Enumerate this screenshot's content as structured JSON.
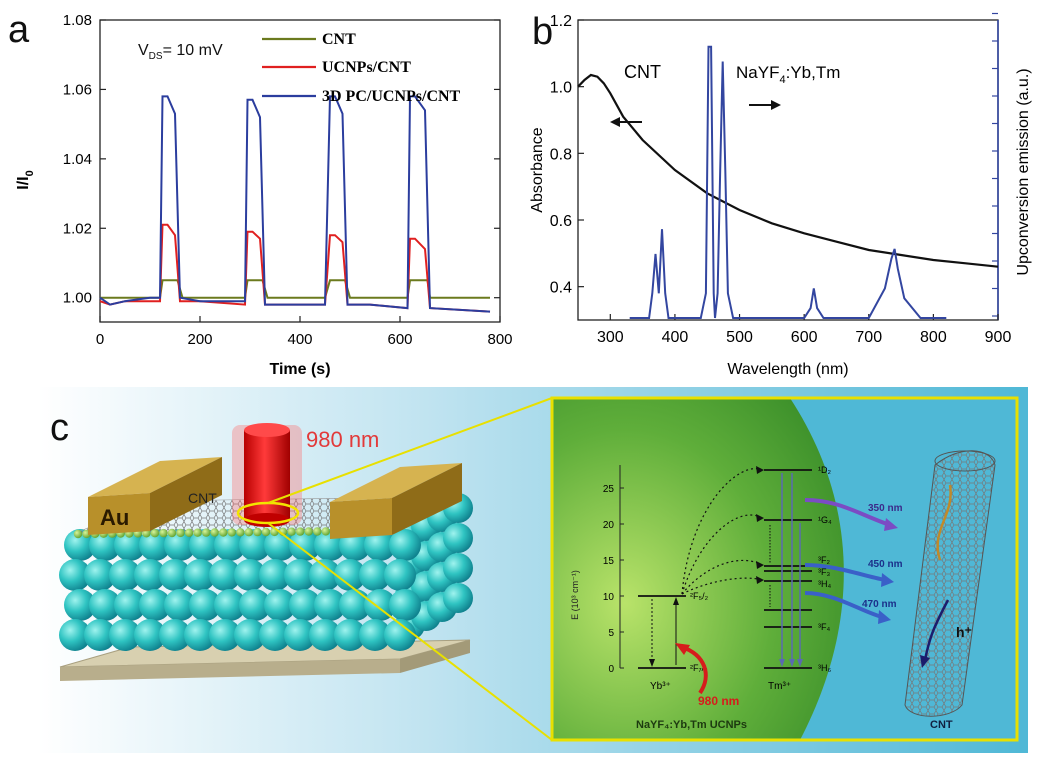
{
  "panels": {
    "a": {
      "label": "a",
      "vds_text": "V",
      "vds_sub": "DS",
      "vds_value": "= 10 mV",
      "ylabel_main": "I/I",
      "ylabel_sub": "0",
      "xlabel": "Time (s)",
      "legend": [
        "CNT",
        "UCNPs/CNT",
        "3D PC/UCNPs/CNT"
      ],
      "xticks": [
        "0",
        "200",
        "400",
        "600",
        "800"
      ],
      "yticks": [
        "1.00",
        "1.02",
        "1.04",
        "1.06",
        "1.08"
      ]
    },
    "b": {
      "label": "b",
      "cnt_label": "CNT",
      "nayf_label_main": "NaYF",
      "nayf_label_sub": "4",
      "nayf_label_tail": ":Yb,Tm",
      "ylabel_left": "Absorbance",
      "ylabel_right": "Upconversion emission (a.u.)",
      "xlabel": "Wavelength (nm)",
      "xticks": [
        "300",
        "400",
        "500",
        "600",
        "700",
        "800",
        "900"
      ],
      "yticks": [
        "0.4",
        "0.6",
        "0.8",
        "1.0",
        "1.2"
      ]
    },
    "c": {
      "label": "c",
      "laser_label": "980 nm",
      "au_label": "Au",
      "cnt_device_label": "CNT",
      "inset": {
        "y_axis_label": "E (10³ cm⁻¹)",
        "yticks": [
          "0",
          "5",
          "10",
          "15",
          "20",
          "25"
        ],
        "yb_ion": "Yb³⁺",
        "tm_ion": "Tm³⁺",
        "excitation": "980 nm",
        "emission": [
          "350 nm",
          "450 nm",
          "470 nm"
        ],
        "yb_levels": [
          "²F₅/₂",
          "²F₇/₂"
        ],
        "tm_levels": [
          "¹D₂",
          "¹G₄",
          "³F₂",
          "³F₃",
          "³H₄",
          "³F₄",
          "³H₆"
        ],
        "hole_label": "h⁺",
        "ucnp_caption": "NaYF₄:Yb,Tm UCNPs",
        "cnt_caption": "CNT"
      }
    }
  },
  "chart_data": [
    {
      "type": "line",
      "panel": "a",
      "xlabel": "Time (s)",
      "ylabel": "I/I0",
      "xlim": [
        0,
        800
      ],
      "ylim": [
        0.993,
        1.08
      ],
      "series": [
        {
          "name": "CNT",
          "color": "#6b7a1e",
          "x": [
            0,
            100,
            120,
            125,
            155,
            165,
            280,
            290,
            295,
            325,
            335,
            440,
            450,
            460,
            490,
            500,
            600,
            615,
            620,
            655,
            660,
            780
          ],
          "y": [
            1.0,
            1.0,
            1.0,
            1.005,
            1.005,
            1.0,
            1.0,
            1.0,
            1.005,
            1.005,
            1.0,
            1.0,
            1.0,
            1.005,
            1.005,
            1.0,
            1.0,
            1.0,
            1.005,
            1.005,
            1.0,
            1.0
          ]
        },
        {
          "name": "UCNPs/CNT",
          "color": "#e02020",
          "x": [
            0,
            20,
            50,
            100,
            120,
            125,
            135,
            150,
            160,
            200,
            290,
            295,
            305,
            320,
            330,
            370,
            450,
            460,
            470,
            485,
            495,
            540,
            615,
            620,
            630,
            650,
            660,
            780
          ],
          "y": [
            0.999,
            0.998,
            0.999,
            0.999,
            0.999,
            1.021,
            1.021,
            1.018,
            0.999,
            0.999,
            0.998,
            1.019,
            1.019,
            1.017,
            0.998,
            0.998,
            0.998,
            1.018,
            1.018,
            1.016,
            0.998,
            0.998,
            0.997,
            1.017,
            1.017,
            1.014,
            0.997,
            0.996
          ]
        },
        {
          "name": "3D PC/UCNPs/CNT",
          "color": "#2b3d9e",
          "x": [
            0,
            20,
            50,
            100,
            120,
            125,
            135,
            150,
            160,
            200,
            290,
            295,
            305,
            320,
            330,
            370,
            450,
            460,
            470,
            485,
            495,
            540,
            615,
            620,
            630,
            650,
            660,
            780
          ],
          "y": [
            1.0,
            0.998,
            0.999,
            1.0,
            1.0,
            1.058,
            1.058,
            1.053,
            1.0,
            0.999,
            0.999,
            1.057,
            1.057,
            1.052,
            0.998,
            0.998,
            0.998,
            1.058,
            1.058,
            1.053,
            0.998,
            0.998,
            0.997,
            1.058,
            1.058,
            1.054,
            0.997,
            0.996
          ]
        }
      ]
    },
    {
      "type": "line",
      "panel": "b",
      "xlabel": "Wavelength (nm)",
      "ylabel": "Absorbance",
      "ylabel_right": "Upconversion emission (a.u.)",
      "xlim": [
        250,
        900
      ],
      "ylim": [
        0.3,
        1.2
      ],
      "series": [
        {
          "name": "CNT",
          "color": "#111111",
          "axis": "left",
          "x": [
            250,
            260,
            270,
            280,
            290,
            300,
            320,
            350,
            400,
            450,
            500,
            550,
            600,
            650,
            700,
            750,
            800,
            850,
            900
          ],
          "y": [
            1.0,
            1.02,
            1.035,
            1.03,
            1.01,
            0.98,
            0.91,
            0.84,
            0.75,
            0.68,
            0.63,
            0.59,
            0.56,
            0.535,
            0.51,
            0.495,
            0.48,
            0.47,
            0.46
          ]
        },
        {
          "name": "NaYF4:Yb,Tm",
          "color": "#3346a0",
          "axis": "right",
          "x": [
            330,
            360,
            365,
            370,
            375,
            380,
            385,
            390,
            440,
            448,
            452,
            456,
            460,
            462,
            466,
            470,
            474,
            478,
            482,
            490,
            600,
            610,
            615,
            620,
            630,
            700,
            725,
            735,
            740,
            745,
            755,
            780,
            820
          ],
          "y": [
            0,
            0,
            0.05,
            0.13,
            0.05,
            0.18,
            0.05,
            0,
            0,
            0.05,
            0.55,
            0.55,
            0.05,
            0,
            0.05,
            0.3,
            0.52,
            0.3,
            0.05,
            0,
            0,
            0.02,
            0.06,
            0.02,
            0,
            0,
            0.06,
            0.12,
            0.14,
            0.1,
            0.04,
            0,
            0
          ]
        }
      ]
    }
  ]
}
